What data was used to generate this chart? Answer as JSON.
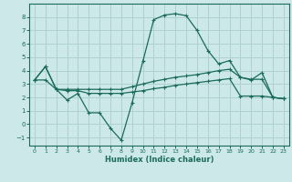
{
  "xlabel": "Humidex (Indice chaleur)",
  "background_color": "#cce8e8",
  "grid_color": "#aed0d0",
  "line_color": "#1a6b5a",
  "spine_color": "#1a6b5a",
  "xlim": [
    -0.5,
    23.5
  ],
  "ylim": [
    -1.6,
    9.0
  ],
  "xticks": [
    0,
    1,
    2,
    3,
    4,
    5,
    6,
    7,
    8,
    9,
    10,
    11,
    12,
    13,
    14,
    15,
    16,
    17,
    18,
    19,
    20,
    21,
    22,
    23
  ],
  "yticks": [
    -1,
    0,
    1,
    2,
    3,
    4,
    5,
    6,
    7,
    8
  ],
  "line1_x": [
    0,
    1,
    2,
    3,
    4,
    5,
    6,
    7,
    8,
    9,
    10,
    11,
    12,
    13,
    14,
    15,
    16,
    17,
    18,
    19,
    20,
    21,
    22,
    23
  ],
  "line1_y": [
    3.3,
    4.3,
    2.6,
    1.8,
    2.3,
    0.85,
    0.85,
    -0.3,
    -1.2,
    1.6,
    4.7,
    7.8,
    8.15,
    8.25,
    8.1,
    7.0,
    5.5,
    4.5,
    4.75,
    3.5,
    3.3,
    3.85,
    2.0,
    1.9
  ],
  "line2_x": [
    0,
    1,
    2,
    3,
    4,
    5,
    6,
    7,
    8,
    9,
    10,
    11,
    12,
    13,
    14,
    15,
    16,
    17,
    18,
    19,
    20,
    21,
    22,
    23
  ],
  "line2_y": [
    3.3,
    4.3,
    2.6,
    2.6,
    2.6,
    2.6,
    2.6,
    2.6,
    2.6,
    2.8,
    3.0,
    3.2,
    3.35,
    3.5,
    3.6,
    3.7,
    3.85,
    4.0,
    4.1,
    3.5,
    3.35,
    3.35,
    2.0,
    1.9
  ],
  "line3_x": [
    0,
    1,
    2,
    3,
    4,
    5,
    6,
    7,
    8,
    9,
    10,
    11,
    12,
    13,
    14,
    15,
    16,
    17,
    18,
    19,
    20,
    21,
    22,
    23
  ],
  "line3_y": [
    3.3,
    3.3,
    2.6,
    2.5,
    2.5,
    2.3,
    2.3,
    2.3,
    2.3,
    2.4,
    2.5,
    2.65,
    2.75,
    2.9,
    3.0,
    3.1,
    3.2,
    3.3,
    3.4,
    2.1,
    2.1,
    2.1,
    2.0,
    1.9
  ]
}
